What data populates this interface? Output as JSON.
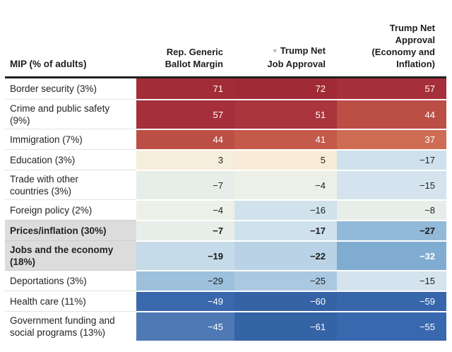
{
  "colors": {
    "header_rule": "#212121",
    "highlight_label_bg": "#dcdcdc",
    "label_separator": "#e3e3e3",
    "sort_icon_gray": "#b5b5b5",
    "strong_red": "#a02b36",
    "strong_blue": "#3463a6",
    "text_dark": "#222222",
    "text_light": "#ffffff"
  },
  "icons": {
    "sort_descending": "▼"
  },
  "header": {
    "row_label": "MIP (% of adults)",
    "columns": [
      {
        "lines": [
          "Rep. Generic",
          "Ballot Margin"
        ],
        "sorted": false
      },
      {
        "lines": [
          "Trump Net",
          "Job Approval"
        ],
        "sorted": true
      },
      {
        "lines": [
          "Trump Net",
          "Approval",
          "(Economy and",
          "Inflation)"
        ],
        "sorted": false
      }
    ]
  },
  "chart_data": {
    "type": "heatmap",
    "row_header": "MIP (% of adults)",
    "columns": [
      "Rep. Generic Ballot Margin",
      "Trump Net Job Approval",
      "Trump Net Approval (Economy and Inflation)"
    ],
    "sorted_by": "Trump Net Job Approval, descending",
    "rows": [
      "Border security (3%)",
      "Crime and public safety (9%)",
      "Immigration (7%)",
      "Education (3%)",
      "Trade with other countries (3%)",
      "Foreign policy (2%)",
      "Prices/inflation (30%)",
      "Jobs and the economy (18%)",
      "Deportations (3%)",
      "Health care (11%)",
      "Government funding and social programs (13%)"
    ],
    "values": [
      [
        71,
        72,
        57
      ],
      [
        57,
        51,
        44
      ],
      [
        44,
        41,
        37
      ],
      [
        3,
        5,
        -17
      ],
      [
        -7,
        -4,
        -15
      ],
      [
        -4,
        -16,
        -8
      ],
      [
        -7,
        -17,
        -27
      ],
      [
        -19,
        -22,
        -32
      ],
      [
        -29,
        -25,
        -15
      ],
      [
        -49,
        -60,
        -59
      ],
      [
        -45,
        -61,
        -55
      ]
    ],
    "highlighted_rows": [
      "Prices/inflation (30%)",
      "Jobs and the economy (18%)"
    ],
    "color_scale": "diverging: red = positive, cream = near zero, blue = negative"
  },
  "table": {
    "rows": [
      {
        "label": "Border security (3%)",
        "bold": false,
        "label_bg": "#ffffff",
        "cells": [
          {
            "v": "71",
            "bg": "#a22c37",
            "fg": "#ffffff"
          },
          {
            "v": "72",
            "bg": "#a02b36",
            "fg": "#ffffff"
          },
          {
            "v": "57",
            "bg": "#a52f3a",
            "fg": "#ffffff"
          }
        ]
      },
      {
        "label": "Crime and public safety (9%)",
        "bold": false,
        "label_bg": "#ffffff",
        "cells": [
          {
            "v": "57",
            "bg": "#a52f3a",
            "fg": "#ffffff"
          },
          {
            "v": "51",
            "bg": "#aa353d",
            "fg": "#ffffff"
          },
          {
            "v": "44",
            "bg": "#bc4f45",
            "fg": "#ffffff"
          }
        ]
      },
      {
        "label": "Immigration (7%)",
        "bold": false,
        "label_bg": "#ffffff",
        "cells": [
          {
            "v": "44",
            "bg": "#bc4f45",
            "fg": "#ffffff"
          },
          {
            "v": "41",
            "bg": "#c35a4a",
            "fg": "#ffffff"
          },
          {
            "v": "37",
            "bg": "#cf6c54",
            "fg": "#ffffff"
          }
        ]
      },
      {
        "label": "Education (3%)",
        "bold": false,
        "label_bg": "#ffffff",
        "cells": [
          {
            "v": "3",
            "bg": "#f6eedd",
            "fg": "#222222"
          },
          {
            "v": "5",
            "bg": "#f8ecd9",
            "fg": "#222222"
          },
          {
            "v": "−17",
            "bg": "#cfe1ec",
            "fg": "#222222"
          }
        ]
      },
      {
        "label": "Trade with other countries (3%)",
        "bold": false,
        "label_bg": "#ffffff",
        "cells": [
          {
            "v": "−7",
            "bg": "#e7eee9",
            "fg": "#222222"
          },
          {
            "v": "−4",
            "bg": "#ecf0e7",
            "fg": "#222222"
          },
          {
            "v": "−15",
            "bg": "#d4e3ee",
            "fg": "#222222"
          }
        ]
      },
      {
        "label": "Foreign policy (2%)",
        "bold": false,
        "label_bg": "#ffffff",
        "cells": [
          {
            "v": "−4",
            "bg": "#ecf0e7",
            "fg": "#222222"
          },
          {
            "v": "−16",
            "bg": "#d1e2ed",
            "fg": "#222222"
          },
          {
            "v": "−8",
            "bg": "#e7eeea",
            "fg": "#222222"
          }
        ]
      },
      {
        "label": "Prices/inflation (30%)",
        "bold": true,
        "label_bg": "#dcdcdc",
        "cells": [
          {
            "v": "−7",
            "bg": "#e7eee9",
            "fg": "#1a1a1a"
          },
          {
            "v": "−17",
            "bg": "#cfe1ec",
            "fg": "#1a1a1a"
          },
          {
            "v": "−27",
            "bg": "#93b9d8",
            "fg": "#1a1a1a"
          }
        ]
      },
      {
        "label": "Jobs and the economy (18%)",
        "bold": true,
        "label_bg": "#dcdcdc",
        "cells": [
          {
            "v": "−19",
            "bg": "#c6dbe9",
            "fg": "#1a1a1a"
          },
          {
            "v": "−22",
            "bg": "#b9d2e5",
            "fg": "#1a1a1a"
          },
          {
            "v": "−32",
            "bg": "#80acd2",
            "fg": "#ffffff"
          }
        ]
      },
      {
        "label": "Deportations (3%)",
        "bold": false,
        "label_bg": "#ffffff",
        "cells": [
          {
            "v": "−29",
            "bg": "#9dc0dc",
            "fg": "#222222"
          },
          {
            "v": "−25",
            "bg": "#aac8e0",
            "fg": "#222222"
          },
          {
            "v": "−15",
            "bg": "#d4e3ee",
            "fg": "#222222"
          }
        ]
      },
      {
        "label": "Health care (11%)",
        "bold": false,
        "label_bg": "#ffffff",
        "cells": [
          {
            "v": "−49",
            "bg": "#3a68ad",
            "fg": "#ffffff"
          },
          {
            "v": "−60",
            "bg": "#3563a5",
            "fg": "#ffffff"
          },
          {
            "v": "−59",
            "bg": "#3766aa",
            "fg": "#ffffff"
          }
        ]
      },
      {
        "label": "Government funding and social programs (13%)",
        "bold": false,
        "label_bg": "#ffffff",
        "cells": [
          {
            "v": "−45",
            "bg": "#4f79b5",
            "fg": "#ffffff"
          },
          {
            "v": "−61",
            "bg": "#3463a6",
            "fg": "#ffffff"
          },
          {
            "v": "−55",
            "bg": "#3968ae",
            "fg": "#ffffff"
          }
        ]
      }
    ]
  }
}
